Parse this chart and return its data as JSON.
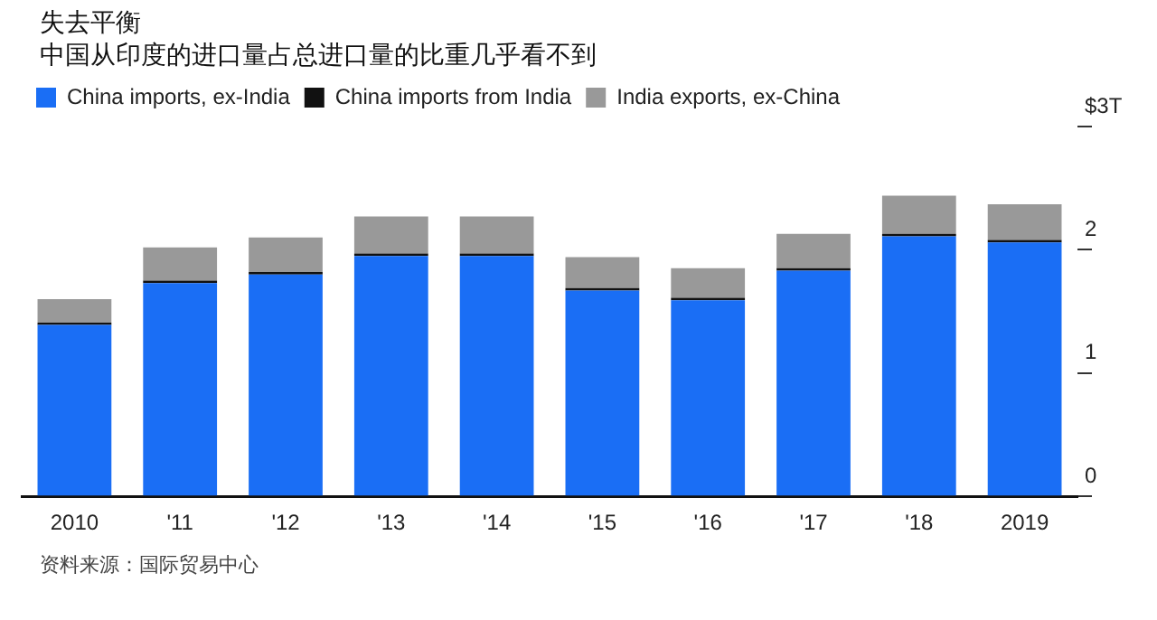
{
  "chart_data": {
    "type": "bar",
    "title": "失去平衡",
    "subtitle": "中国从印度的进口量占总进口量的比重几乎看不到",
    "categories": [
      "2010",
      "'11",
      "'12",
      "'13",
      "'14",
      "'15",
      "'16",
      "'17",
      "'18",
      "2019"
    ],
    "stacked": true,
    "series": [
      {
        "name": "China imports, ex-India",
        "color": "#1a6ef5",
        "values": [
          1.39,
          1.73,
          1.8,
          1.95,
          1.95,
          1.67,
          1.59,
          1.83,
          2.11,
          2.06
        ]
      },
      {
        "name": "China imports from India",
        "color": "#111111",
        "values": [
          0.02,
          0.02,
          0.02,
          0.02,
          0.02,
          0.02,
          0.02,
          0.02,
          0.02,
          0.02
        ]
      },
      {
        "name": "India exports, ex-China",
        "color": "#999999",
        "values": [
          0.19,
          0.27,
          0.28,
          0.3,
          0.3,
          0.25,
          0.24,
          0.28,
          0.31,
          0.29
        ]
      }
    ],
    "ylim": [
      0,
      3
    ],
    "yticks": [
      0,
      1,
      2,
      {
        "value": 3,
        "label": "$3T"
      }
    ],
    "grid": false,
    "legend": "top",
    "annotations": [
      "资料来源：国际贸易中心"
    ]
  }
}
